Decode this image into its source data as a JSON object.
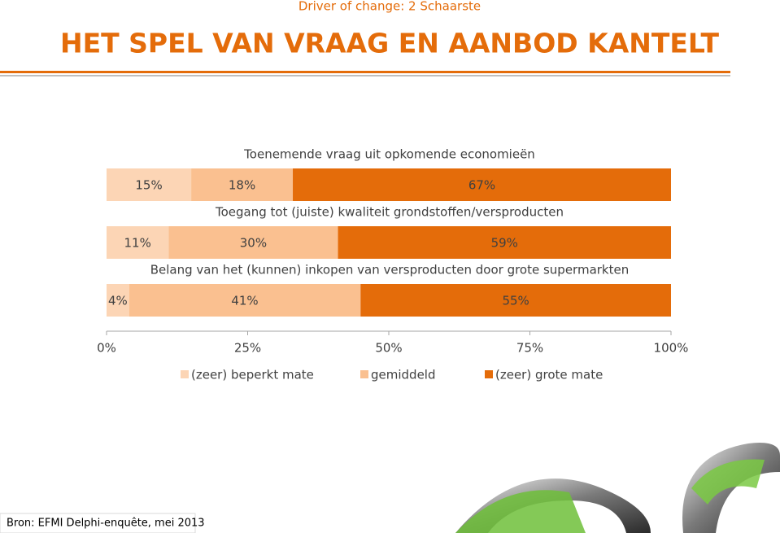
{
  "header": {
    "subtitle": "Driver of change: 2 Schaarste",
    "title": "HET SPEL VAN VRAAG EN AANBOD KANTELT"
  },
  "chart_data": {
    "type": "bar",
    "orientation": "horizontal",
    "stacked": true,
    "categories": [
      "Toenemende vraag uit opkomende economieën",
      "Toegang tot (juiste) kwaliteit grondstoffen/versproducten",
      "Belang van het (kunnen) inkopen van versproducten door grote supermarkten"
    ],
    "series": [
      {
        "name": "(zeer) beperkt mate",
        "color": "#fcd5b5",
        "values": [
          15,
          11,
          4
        ],
        "value_labels": [
          "15%",
          "11%",
          "4%"
        ]
      },
      {
        "name": "gemiddeld",
        "color": "#fac090",
        "values": [
          18,
          30,
          41
        ],
        "value_labels": [
          "18%",
          "30%",
          "41%"
        ]
      },
      {
        "name": "(zeer) grote mate",
        "color": "#e46c0a",
        "values": [
          67,
          59,
          55
        ],
        "value_labels": [
          "67%",
          "59%",
          "55%"
        ]
      }
    ],
    "xlim": [
      0,
      100
    ],
    "xticks": [
      {
        "value": 0,
        "label": "0%"
      },
      {
        "value": 25,
        "label": "25%"
      },
      {
        "value": 50,
        "label": "50%"
      },
      {
        "value": 75,
        "label": "75%"
      },
      {
        "value": 100,
        "label": "100%"
      }
    ],
    "legend": "bottom"
  },
  "footer": {
    "source": "Bron: EFMI Delphi-enquête, mei 2013"
  }
}
